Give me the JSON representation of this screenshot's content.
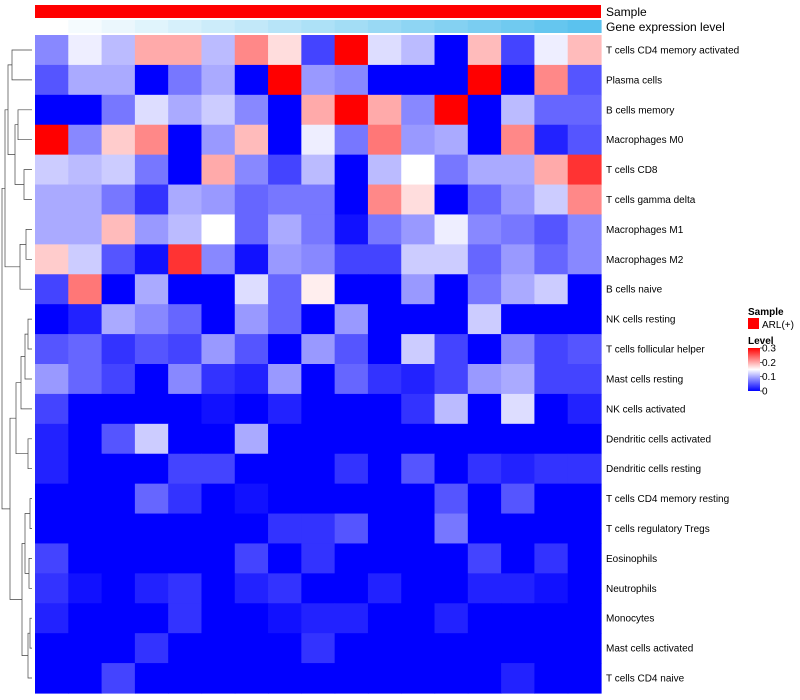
{
  "chart_data": {
    "type": "heatmap",
    "annotation_tracks": [
      "Sample",
      "Gene expression level"
    ],
    "rows": [
      "T cells CD4 memory activated",
      "Plasma cells",
      "B cells memory",
      "Macrophages M0",
      "T cells CD8",
      "T cells gamma delta",
      "Macrophages M1",
      "Macrophages M2",
      "B cells naive",
      "NK cells resting",
      "T cells follicular helper",
      "Mast cells resting",
      "NK cells activated",
      "Dendritic cells activated",
      "Dendritic cells resting",
      "T cells CD4 memory resting",
      "T cells regulatory  Tregs",
      "Eosinophils",
      "Neutrophils",
      "Monocytes",
      "Mast cells activated",
      "T cells CD4 naive"
    ],
    "values": [
      [
        0.08,
        0.14,
        0.11,
        0.2,
        0.2,
        0.11,
        0.22,
        0.17,
        0.04,
        0.3,
        0.13,
        0.11,
        0.0,
        0.19,
        0.04,
        0.14,
        0.19
      ],
      [
        0.05,
        0.1,
        0.1,
        0.0,
        0.07,
        0.1,
        0.0,
        0.3,
        0.09,
        0.08,
        0.0,
        0.0,
        0.0,
        0.3,
        0.0,
        0.22,
        0.05
      ],
      [
        0.0,
        0.0,
        0.07,
        0.13,
        0.1,
        0.12,
        0.08,
        0.0,
        0.2,
        0.3,
        0.2,
        0.08,
        0.3,
        0.0,
        0.11,
        0.06,
        0.06
      ],
      [
        0.3,
        0.08,
        0.18,
        0.22,
        0.0,
        0.09,
        0.19,
        0.0,
        0.14,
        0.07,
        0.23,
        0.09,
        0.1,
        0.0,
        0.22,
        0.02,
        0.05
      ],
      [
        0.12,
        0.11,
        0.12,
        0.07,
        0.0,
        0.2,
        0.08,
        0.04,
        0.11,
        0.0,
        0.11,
        0.15,
        0.07,
        0.1,
        0.1,
        0.2,
        0.27
      ],
      [
        0.1,
        0.1,
        0.07,
        0.03,
        0.1,
        0.09,
        0.06,
        0.07,
        0.07,
        0.0,
        0.22,
        0.17,
        0.0,
        0.06,
        0.09,
        0.12,
        0.22
      ],
      [
        0.1,
        0.1,
        0.19,
        0.09,
        0.11,
        0.15,
        0.06,
        0.1,
        0.07,
        0.01,
        0.07,
        0.09,
        0.14,
        0.08,
        0.07,
        0.05,
        0.08
      ],
      [
        0.18,
        0.12,
        0.05,
        0.01,
        0.27,
        0.08,
        0.01,
        0.09,
        0.08,
        0.04,
        0.04,
        0.12,
        0.12,
        0.06,
        0.09,
        0.06,
        0.08
      ],
      [
        0.04,
        0.23,
        0.0,
        0.1,
        0.0,
        0.0,
        0.13,
        0.06,
        0.16,
        0.0,
        0.0,
        0.09,
        0.0,
        0.07,
        0.1,
        0.12,
        0.0
      ],
      [
        0.0,
        0.02,
        0.1,
        0.08,
        0.06,
        0.0,
        0.09,
        0.06,
        0.0,
        0.09,
        0.0,
        0.0,
        0.0,
        0.12,
        0.0,
        0.0,
        0.0
      ],
      [
        0.05,
        0.06,
        0.03,
        0.05,
        0.04,
        0.09,
        0.05,
        0.0,
        0.09,
        0.05,
        0.0,
        0.12,
        0.04,
        0.0,
        0.08,
        0.04,
        0.05
      ],
      [
        0.09,
        0.06,
        0.04,
        0.0,
        0.08,
        0.03,
        0.02,
        0.09,
        0.0,
        0.06,
        0.03,
        0.02,
        0.04,
        0.09,
        0.1,
        0.04,
        0.04
      ],
      [
        0.04,
        0.0,
        0.0,
        0.0,
        0.0,
        0.01,
        0.0,
        0.02,
        0.0,
        0.0,
        0.0,
        0.03,
        0.11,
        0.0,
        0.13,
        0.0,
        0.02
      ],
      [
        0.02,
        0.0,
        0.05,
        0.12,
        0.0,
        0.0,
        0.1,
        0.0,
        0.0,
        0.0,
        0.0,
        0.0,
        0.0,
        0.0,
        0.0,
        0.0,
        0.0
      ],
      [
        0.02,
        0.0,
        0.0,
        0.0,
        0.04,
        0.04,
        0.0,
        0.0,
        0.0,
        0.03,
        0.0,
        0.05,
        0.0,
        0.03,
        0.02,
        0.03,
        0.03
      ],
      [
        0.0,
        0.0,
        0.0,
        0.06,
        0.03,
        0.0,
        0.01,
        0.0,
        0.0,
        0.0,
        0.0,
        0.0,
        0.05,
        0.0,
        0.05,
        0.0,
        0.0
      ],
      [
        0.0,
        0.0,
        0.0,
        0.0,
        0.0,
        0.0,
        0.0,
        0.03,
        0.03,
        0.05,
        0.0,
        0.0,
        0.07,
        0.0,
        0.0,
        0.0,
        0.0
      ],
      [
        0.04,
        0.0,
        0.0,
        0.0,
        0.0,
        0.0,
        0.04,
        0.0,
        0.03,
        0.0,
        0.0,
        0.0,
        0.0,
        0.04,
        0.0,
        0.03,
        0.0
      ],
      [
        0.03,
        0.01,
        0.0,
        0.02,
        0.03,
        0.0,
        0.02,
        0.03,
        0.0,
        0.0,
        0.02,
        0.0,
        0.0,
        0.02,
        0.02,
        0.01,
        0.0
      ],
      [
        0.02,
        0.0,
        0.0,
        0.0,
        0.03,
        0.0,
        0.0,
        0.01,
        0.02,
        0.02,
        0.0,
        0.0,
        0.02,
        0.0,
        0.0,
        0.0,
        0.0
      ],
      [
        0.0,
        0.0,
        0.0,
        0.03,
        0.0,
        0.0,
        0.0,
        0.0,
        0.03,
        0.0,
        0.0,
        0.0,
        0.0,
        0.0,
        0.0,
        0.0,
        0.0
      ],
      [
        0.0,
        0.0,
        0.04,
        0.0,
        0.0,
        0.0,
        0.0,
        0.0,
        0.0,
        0.0,
        0.0,
        0.0,
        0.0,
        0.0,
        0.02,
        0.0,
        0.0
      ]
    ],
    "color_scale": {
      "low": "#0000ff",
      "mid": "#ffffff",
      "high": "#ff0000",
      "range": [
        0,
        0.3
      ],
      "midpoint": 0.15
    },
    "sample_color": "#ff0000",
    "gene_expression_gradient": [
      "#ffffff",
      "#5bc2ee"
    ],
    "legend": {
      "sample_title": "Sample",
      "sample_entry": "ARL(+)",
      "level_title": "Level",
      "level_ticks": [
        "0.3",
        "0.2",
        "0.1",
        "0"
      ],
      "level_tick_values": [
        0.3,
        0.2,
        0.1,
        0
      ],
      "position": "right"
    },
    "row_dendrogram": true
  }
}
